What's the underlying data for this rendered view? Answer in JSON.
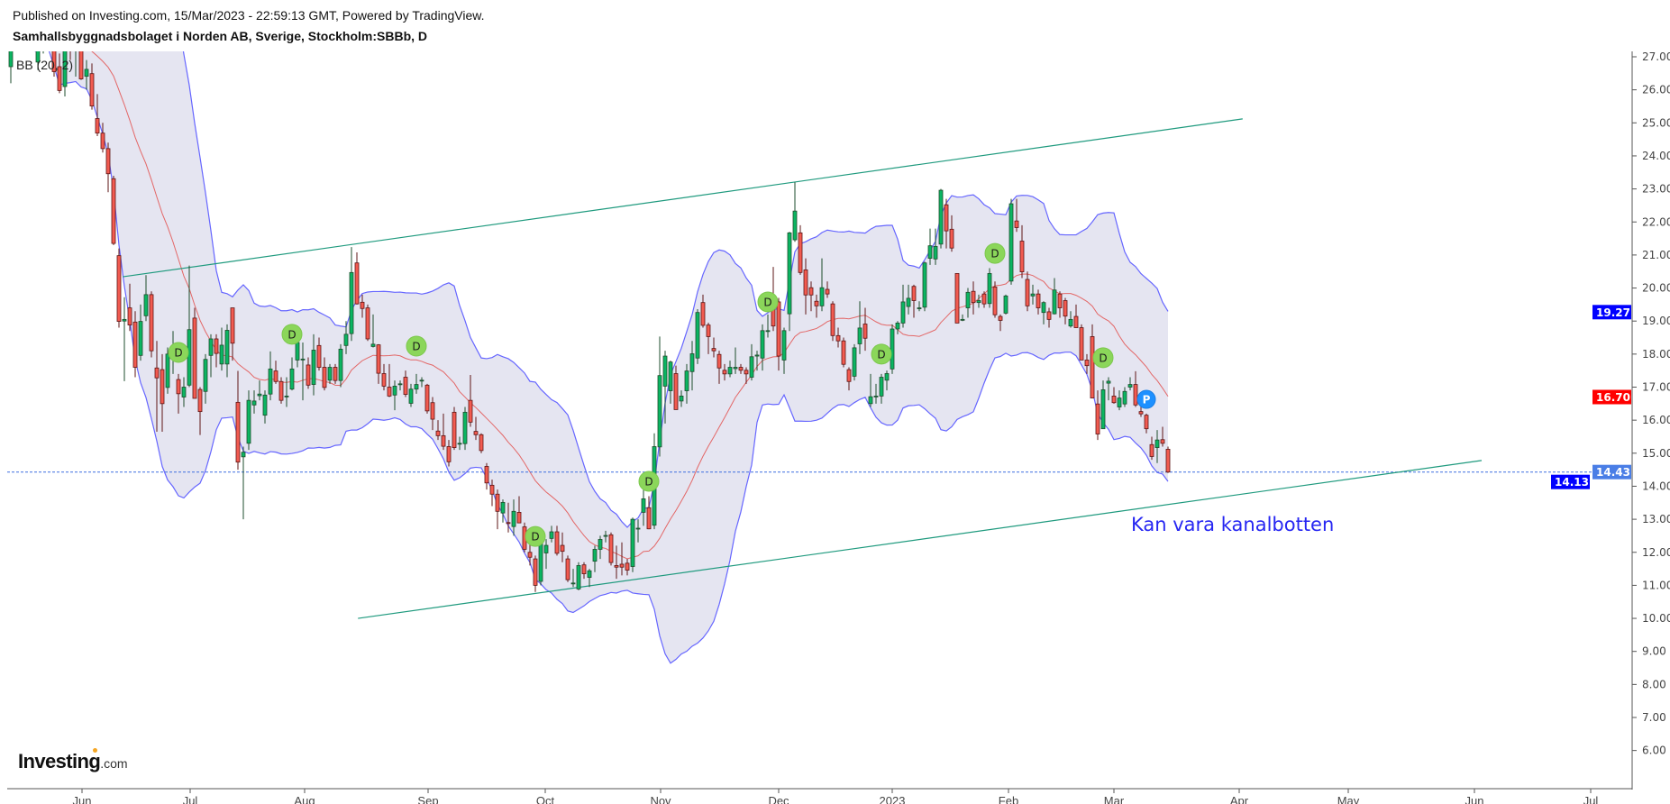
{
  "header": {
    "published": "Published on Investing.com, 15/Mar/2023 - 22:59:13 GMT, Powered by TradingView.",
    "symbol": "Samhallsbyggnadsbolaget i Norden AB, Sverige, Stockholm:SBBb, D"
  },
  "indicator_label": "BB (20, 2)",
  "annotation": "Kan vara kanalbotten",
  "logo": {
    "text": "Investing",
    "suffix": ".com"
  },
  "colors": {
    "up": "#0bb562",
    "up_border": "#1d4d2c",
    "down": "#f25b50",
    "down_border": "#5e1515",
    "band_fill": "#e5e5f1",
    "band_line": "#6666ff",
    "basis": "#e36767",
    "trendline": "#1f9a7e",
    "last_price_line": "#3f6fe0",
    "dividend_marker": "#8bd65a",
    "p_marker": "#1e90ff"
  },
  "chart_data": {
    "type": "candlestick",
    "interval": "D",
    "indicator": {
      "name": "Bollinger Bands",
      "length": 20,
      "mult": 2
    },
    "ylim": [
      5.0,
      27.2
    ],
    "y_ticks": [
      "27.00",
      "26.00",
      "25.00",
      "24.00",
      "23.00",
      "22.00",
      "21.00",
      "20.00",
      "19.00",
      "18.00",
      "17.00",
      "16.00",
      "15.00",
      "14.00",
      "13.00",
      "12.00",
      "11.00",
      "10.00",
      "9.00",
      "8.00",
      "7.00",
      "6.00"
    ],
    "x_ticks": [
      "Jun",
      "Jul",
      "Aug",
      "Sep",
      "Oct",
      "Nov",
      "Dec",
      "2023",
      "Feb",
      "Mar",
      "Apr",
      "May",
      "Jun",
      "Jul"
    ],
    "price_labels": [
      {
        "value": "19.27",
        "color": "#0000ff"
      },
      {
        "value": "16.70",
        "color": "#ff0000"
      },
      {
        "value": "14.43",
        "color": "#4a7ee6"
      },
      {
        "value": "14.13",
        "color": "#0000ff"
      }
    ],
    "last_price": 14.43,
    "candles_ohlc": [
      [
        26.7,
        28.0,
        26.2,
        27.6
      ],
      [
        28.2,
        28.6,
        27.6,
        27.8
      ],
      [
        27.8,
        28.5,
        27.5,
        28.3
      ],
      [
        28.3,
        28.6,
        27.7,
        27.9
      ],
      [
        27.9,
        28.2,
        27.2,
        27.4
      ],
      [
        26.84,
        27.8,
        26.6,
        27.5
      ],
      [
        27.5,
        28.0,
        27.1,
        27.8
      ],
      [
        27.8,
        28.1,
        27.3,
        27.6
      ],
      [
        27.6,
        27.9,
        26.4,
        26.55
      ],
      [
        26.7,
        27.1,
        25.9,
        25.98
      ],
      [
        26.1,
        27.6,
        25.8,
        27.3
      ],
      [
        27.3,
        27.6,
        26.9,
        27.2
      ],
      [
        27.2,
        27.5,
        26.4,
        27.25
      ],
      [
        27.3,
        27.6,
        26.3,
        26.33
      ],
      [
        26.41,
        26.9,
        26.0,
        26.62
      ],
      [
        26.49,
        26.8,
        25.4,
        25.51
      ],
      [
        25.13,
        25.87,
        24.6,
        24.69
      ],
      [
        24.69,
        25.0,
        24.1,
        24.22
      ],
      [
        24.22,
        24.4,
        22.9,
        23.46
      ],
      [
        23.31,
        23.4,
        21.3,
        21.35
      ],
      [
        20.98,
        21.2,
        18.8,
        18.99
      ],
      [
        19.0,
        19.72,
        17.18,
        19.05
      ],
      [
        19.4,
        20.13,
        18.7,
        18.88
      ],
      [
        18.97,
        19.3,
        17.3,
        17.6
      ],
      [
        17.96,
        19.5,
        17.8,
        18.99
      ],
      [
        19.16,
        20.39,
        19.0,
        19.8
      ],
      [
        19.8,
        19.9,
        17.9,
        18.1
      ],
      [
        17.58,
        18.4,
        15.65,
        17.28
      ],
      [
        17.53,
        18.0,
        15.65,
        16.5
      ],
      [
        16.99,
        18.2,
        16.8,
        18.0
      ],
      [
        18.0,
        18.7,
        17.4,
        18.05
      ],
      [
        17.23,
        17.4,
        16.2,
        16.8
      ],
      [
        16.7,
        17.3,
        16.4,
        17.0
      ],
      [
        17.06,
        20.68,
        17.0,
        18.74
      ],
      [
        19.09,
        19.4,
        16.66,
        16.66
      ],
      [
        16.93,
        17.0,
        15.55,
        16.26
      ],
      [
        16.87,
        18.0,
        16.5,
        17.84
      ],
      [
        17.96,
        18.6,
        17.3,
        18.46
      ],
      [
        18.46,
        18.6,
        17.6,
        18.02
      ],
      [
        17.7,
        18.8,
        17.5,
        18.27
      ],
      [
        17.7,
        18.9,
        17.3,
        18.72
      ],
      [
        19.4,
        19.4,
        17.8,
        18.33
      ],
      [
        16.54,
        17.49,
        14.5,
        14.73
      ],
      [
        14.89,
        15.2,
        13.0,
        15.03
      ],
      [
        15.3,
        16.9,
        15.1,
        16.6
      ],
      [
        16.46,
        16.9,
        16.2,
        16.58
      ],
      [
        16.74,
        17.2,
        16.6,
        16.79
      ],
      [
        16.15,
        16.9,
        15.9,
        16.76
      ],
      [
        16.79,
        18.08,
        16.6,
        17.55
      ],
      [
        17.49,
        17.8,
        17.1,
        17.17
      ],
      [
        17.17,
        17.3,
        16.5,
        16.6
      ],
      [
        16.73,
        17.3,
        16.4,
        16.73
      ],
      [
        16.94,
        17.9,
        16.9,
        17.55
      ],
      [
        17.82,
        18.6,
        17.6,
        18.35
      ],
      [
        17.85,
        18.35,
        16.6,
        17.85
      ],
      [
        17.67,
        17.9,
        16.95,
        17.06
      ],
      [
        17.08,
        18.6,
        16.75,
        18.12
      ],
      [
        18.26,
        18.5,
        17.5,
        17.6
      ],
      [
        17.6,
        17.9,
        16.9,
        16.99
      ],
      [
        17.21,
        17.7,
        17.1,
        17.6
      ],
      [
        17.6,
        17.7,
        17.1,
        17.2
      ],
      [
        17.2,
        18.3,
        17.0,
        18.15
      ],
      [
        18.26,
        19.0,
        18.0,
        18.6
      ],
      [
        18.62,
        21.24,
        18.4,
        20.47
      ],
      [
        20.76,
        21.08,
        19.5,
        19.52
      ],
      [
        19.57,
        19.8,
        19.1,
        19.38
      ],
      [
        19.4,
        19.5,
        18.4,
        18.46
      ],
      [
        18.23,
        19.2,
        18.2,
        18.3
      ],
      [
        18.28,
        18.3,
        17.1,
        17.42
      ],
      [
        17.41,
        17.7,
        16.9,
        17.03
      ],
      [
        17.0,
        17.7,
        16.7,
        16.73
      ],
      [
        16.76,
        17.2,
        16.3,
        17.03
      ],
      [
        17.1,
        17.2,
        16.9,
        17.1
      ],
      [
        17.3,
        17.5,
        16.7,
        16.78
      ],
      [
        16.51,
        17.1,
        16.4,
        16.94
      ],
      [
        16.94,
        17.4,
        16.8,
        17.08
      ],
      [
        17.21,
        17.3,
        17.0,
        17.21
      ],
      [
        17.06,
        17.1,
        16.2,
        16.28
      ],
      [
        16.53,
        16.7,
        15.7,
        16.03
      ],
      [
        15.67,
        16.0,
        15.4,
        15.53
      ],
      [
        15.53,
        16.2,
        15.1,
        15.21
      ],
      [
        15.2,
        15.4,
        14.6,
        14.74
      ],
      [
        16.24,
        16.4,
        15.1,
        15.17
      ],
      [
        15.3,
        15.5,
        15.1,
        15.3
      ],
      [
        15.29,
        16.4,
        15.1,
        16.24
      ],
      [
        16.6,
        17.37,
        15.8,
        15.94
      ],
      [
        15.66,
        16.1,
        15.4,
        15.56
      ],
      [
        15.56,
        15.6,
        15.0,
        15.08
      ],
      [
        14.6,
        14.7,
        13.9,
        14.1
      ],
      [
        14.03,
        14.2,
        13.4,
        13.76
      ],
      [
        13.76,
        13.9,
        12.7,
        13.24
      ],
      [
        13.19,
        13.6,
        12.9,
        13.51
      ],
      [
        12.9,
        13.5,
        12.6,
        12.89
      ],
      [
        12.78,
        13.6,
        12.5,
        13.24
      ],
      [
        13.21,
        13.7,
        12.9,
        12.89
      ],
      [
        12.77,
        12.9,
        12.0,
        12.09
      ],
      [
        12.0,
        12.4,
        11.6,
        11.85
      ],
      [
        11.8,
        11.9,
        10.8,
        11.0
      ],
      [
        11.12,
        12.6,
        11.0,
        12.44
      ],
      [
        11.98,
        12.4,
        11.5,
        12.21
      ],
      [
        12.42,
        12.8,
        12.3,
        12.62
      ],
      [
        12.62,
        12.8,
        11.9,
        11.97
      ],
      [
        12.21,
        12.6,
        11.7,
        12.03
      ],
      [
        11.8,
        11.9,
        11.1,
        11.17
      ],
      [
        11.07,
        11.5,
        10.95,
        11.07
      ],
      [
        10.89,
        11.7,
        10.85,
        11.6
      ],
      [
        11.62,
        11.7,
        11.2,
        11.35
      ],
      [
        11.24,
        11.5,
        10.95,
        11.44
      ],
      [
        11.73,
        12.2,
        11.4,
        12.09
      ],
      [
        12.09,
        12.5,
        11.8,
        12.39
      ],
      [
        12.51,
        12.65,
        12.3,
        12.51
      ],
      [
        12.53,
        12.6,
        11.6,
        11.69
      ],
      [
        11.6,
        12.2,
        11.2,
        11.55
      ],
      [
        11.64,
        12.3,
        11.3,
        11.55
      ],
      [
        11.67,
        11.8,
        11.3,
        11.46
      ],
      [
        11.57,
        13.05,
        11.4,
        13.0
      ],
      [
        12.73,
        13.0,
        12.3,
        12.73
      ],
      [
        13.21,
        14.0,
        12.8,
        13.62
      ],
      [
        13.35,
        13.7,
        12.7,
        12.71
      ],
      [
        12.82,
        15.6,
        12.7,
        15.2
      ],
      [
        15.19,
        18.53,
        14.9,
        17.35
      ],
      [
        17.03,
        18.1,
        15.9,
        17.94
      ],
      [
        16.89,
        17.8,
        16.5,
        17.76
      ],
      [
        17.41,
        17.65,
        16.32,
        16.32
      ],
      [
        16.58,
        16.9,
        16.4,
        16.73
      ],
      [
        16.89,
        17.7,
        16.5,
        17.49
      ],
      [
        17.47,
        18.4,
        16.9,
        18.01
      ],
      [
        17.88,
        19.36,
        17.7,
        19.26
      ],
      [
        19.56,
        19.8,
        18.8,
        18.87
      ],
      [
        18.88,
        18.95,
        18.0,
        18.53
      ],
      [
        18.17,
        18.5,
        17.9,
        18.1
      ],
      [
        17.99,
        18.1,
        17.1,
        17.58
      ],
      [
        17.51,
        17.7,
        17.2,
        17.4
      ],
      [
        17.4,
        17.8,
        17.3,
        17.6
      ],
      [
        17.56,
        18.2,
        17.4,
        17.6
      ],
      [
        17.6,
        17.7,
        17.4,
        17.51
      ],
      [
        17.51,
        17.6,
        17.1,
        17.4
      ],
      [
        17.3,
        18.3,
        17.2,
        17.92
      ],
      [
        17.94,
        18.1,
        17.5,
        17.97
      ],
      [
        17.88,
        18.9,
        17.5,
        18.71
      ],
      [
        18.71,
        19.2,
        18.5,
        18.71
      ],
      [
        19.58,
        20.64,
        18.7,
        18.85
      ],
      [
        19.58,
        19.7,
        17.5,
        17.94
      ],
      [
        17.82,
        18.8,
        17.4,
        18.71
      ],
      [
        19.22,
        21.7,
        18.7,
        21.67
      ],
      [
        21.46,
        23.2,
        21.4,
        22.33
      ],
      [
        21.67,
        21.9,
        20.4,
        20.47
      ],
      [
        20.55,
        20.9,
        19.2,
        19.79
      ],
      [
        20.01,
        20.2,
        19.3,
        19.79
      ],
      [
        19.6,
        19.8,
        19.1,
        19.46
      ],
      [
        19.46,
        20.9,
        19.3,
        20.01
      ],
      [
        19.96,
        20.2,
        19.7,
        19.82
      ],
      [
        19.52,
        19.6,
        18.4,
        18.56
      ],
      [
        18.56,
        18.8,
        18.2,
        18.4
      ],
      [
        18.4,
        18.5,
        17.6,
        17.69
      ],
      [
        17.53,
        17.6,
        16.9,
        17.17
      ],
      [
        17.33,
        18.3,
        17.2,
        18.19
      ],
      [
        18.31,
        19.6,
        18.0,
        18.79
      ],
      [
        18.91,
        19.4,
        18.1,
        18.48
      ],
      [
        16.5,
        17.4,
        16.4,
        16.71
      ],
      [
        16.73,
        17.1,
        16.5,
        16.73
      ],
      [
        16.73,
        17.4,
        16.5,
        17.3
      ],
      [
        17.21,
        17.5,
        16.9,
        17.41
      ],
      [
        17.55,
        18.9,
        17.4,
        18.76
      ],
      [
        18.76,
        19.0,
        18.6,
        18.94
      ],
      [
        18.94,
        20.1,
        18.8,
        19.58
      ],
      [
        19.44,
        20.1,
        19.2,
        19.69
      ],
      [
        20.05,
        20.1,
        19.1,
        19.62
      ],
      [
        19.4,
        19.6,
        19.3,
        19.4
      ],
      [
        19.42,
        20.8,
        19.3,
        20.76
      ],
      [
        20.9,
        21.8,
        20.7,
        21.28
      ],
      [
        20.88,
        21.8,
        20.7,
        21.26
      ],
      [
        21.33,
        23.0,
        21.2,
        22.96
      ],
      [
        22.52,
        22.7,
        21.2,
        21.73
      ],
      [
        21.78,
        22.2,
        21.1,
        21.21
      ],
      [
        20.44,
        20.44,
        18.94,
        18.94
      ],
      [
        19.05,
        19.2,
        19.0,
        19.05
      ],
      [
        19.4,
        20.0,
        19.1,
        19.87
      ],
      [
        19.9,
        20.2,
        19.2,
        19.56
      ],
      [
        19.56,
        19.8,
        19.4,
        19.62
      ],
      [
        19.82,
        19.9,
        19.4,
        19.52
      ],
      [
        19.53,
        20.6,
        19.4,
        20.44
      ],
      [
        20.03,
        20.2,
        19.1,
        19.19
      ],
      [
        19.14,
        19.2,
        18.7,
        19.02
      ],
      [
        19.24,
        19.8,
        19.2,
        19.76
      ],
      [
        20.21,
        22.7,
        20.1,
        22.55
      ],
      [
        22.03,
        22.7,
        21.7,
        21.83
      ],
      [
        21.42,
        21.9,
        20.3,
        20.49
      ],
      [
        20.26,
        20.5,
        19.3,
        19.46
      ],
      [
        19.76,
        20.1,
        19.5,
        19.82
      ],
      [
        19.82,
        19.95,
        19.2,
        19.4
      ],
      [
        19.26,
        19.6,
        18.9,
        19.56
      ],
      [
        19.28,
        19.4,
        18.8,
        19.05
      ],
      [
        19.22,
        20.3,
        19.2,
        19.94
      ],
      [
        19.82,
        19.9,
        19.1,
        19.4
      ],
      [
        19.62,
        19.7,
        18.9,
        19.15
      ],
      [
        18.85,
        19.3,
        18.8,
        19.05
      ],
      [
        19.14,
        19.5,
        18.8,
        18.8
      ],
      [
        18.8,
        18.9,
        17.82,
        17.82
      ],
      [
        17.82,
        18.0,
        17.4,
        17.65
      ],
      [
        18.53,
        18.9,
        16.67,
        16.67
      ],
      [
        16.49,
        16.9,
        15.4,
        15.58
      ],
      [
        15.74,
        17.2,
        15.74,
        16.92
      ],
      [
        17.12,
        17.3,
        16.6,
        17.18
      ],
      [
        16.73,
        17.0,
        16.5,
        16.53
      ],
      [
        16.4,
        16.9,
        16.3,
        16.67
      ],
      [
        16.49,
        17.0,
        16.4,
        16.87
      ],
      [
        17.0,
        17.3,
        16.9,
        17.08
      ],
      [
        17.08,
        17.48,
        16.4,
        16.46
      ],
      [
        16.26,
        16.5,
        16.1,
        16.19
      ],
      [
        16.15,
        16.2,
        15.6,
        15.74
      ],
      [
        15.26,
        15.5,
        14.8,
        14.9
      ],
      [
        15.17,
        15.7,
        14.7,
        15.4
      ],
      [
        15.41,
        15.8,
        15.2,
        15.3
      ],
      [
        15.12,
        15.2,
        14.4,
        14.43
      ]
    ],
    "markers": [
      {
        "label": "D",
        "bar": 31,
        "price": 18.05
      },
      {
        "label": "D",
        "bar": 52,
        "price": 18.6
      },
      {
        "label": "D",
        "bar": 75,
        "price": 18.24
      },
      {
        "label": "D",
        "bar": 97,
        "price": 12.48
      },
      {
        "label": "D",
        "bar": 118,
        "price": 14.15
      },
      {
        "label": "D",
        "bar": 140,
        "price": 19.58
      },
      {
        "label": "D",
        "bar": 161,
        "price": 18.0
      },
      {
        "label": "D",
        "bar": 182,
        "price": 21.05
      },
      {
        "label": "D",
        "bar": 202,
        "price": 17.89
      },
      {
        "label": "P",
        "bar": 210,
        "price": 16.63
      }
    ],
    "trendlines": [
      {
        "from": {
          "bar": 20.7,
          "price": 20.34
        },
        "to": {
          "bar": 227.8,
          "price": 25.12
        }
      },
      {
        "from": {
          "bar": 64.2,
          "price": 10.0
        },
        "to": {
          "bar": 272,
          "price": 14.78
        }
      }
    ]
  }
}
